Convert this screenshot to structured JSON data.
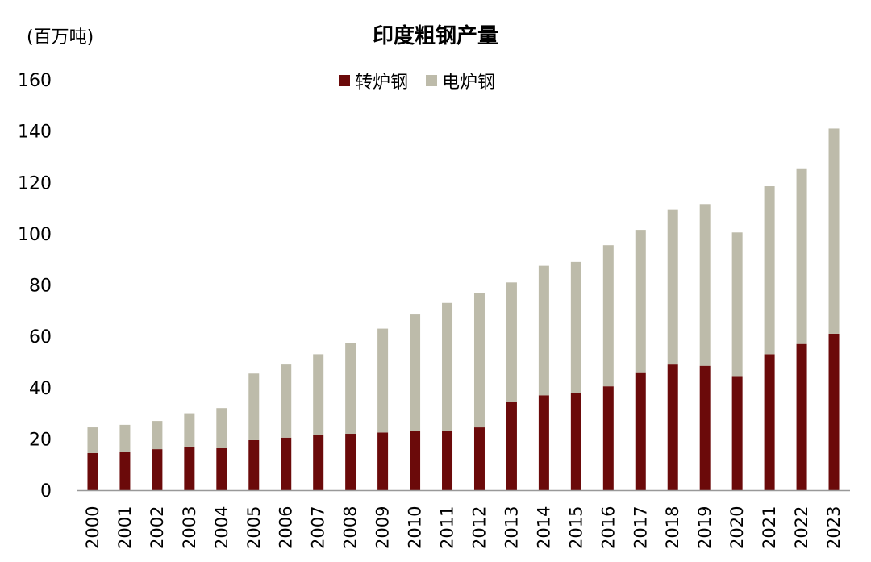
{
  "colors": {
    "bof": "#6B0A0A",
    "eaf": "#BDBBAA",
    "axis": "#999999"
  },
  "chart_data": {
    "type": "bar",
    "stacked": true,
    "title": "印度粗钢产量",
    "unit_label": "(百万吨)",
    "xlabel": "",
    "ylabel": "",
    "ylim": [
      0,
      160
    ],
    "yticks": [
      0,
      20,
      40,
      60,
      80,
      100,
      120,
      140,
      160
    ],
    "grid": false,
    "legend": "top",
    "categories": [
      "2000",
      "2001",
      "2002",
      "2003",
      "2004",
      "2005",
      "2006",
      "2007",
      "2008",
      "2009",
      "2010",
      "2011",
      "2012",
      "2013",
      "2014",
      "2015",
      "2016",
      "2017",
      "2018",
      "2019",
      "2020",
      "2021",
      "2022",
      "2023"
    ],
    "series": [
      {
        "name": "转炉钢",
        "color_key": "bof",
        "values": [
          14.5,
          15.0,
          16.0,
          17.0,
          16.5,
          19.5,
          20.5,
          21.5,
          22.0,
          22.5,
          23.0,
          23.0,
          24.5,
          34.5,
          37.0,
          38.0,
          40.5,
          46.0,
          49.0,
          48.5,
          44.5,
          53.0,
          57.0,
          61.0
        ]
      },
      {
        "name": "电炉钢",
        "color_key": "eaf",
        "values": [
          10.0,
          10.5,
          11.0,
          13.0,
          15.5,
          26.0,
          28.5,
          31.5,
          35.5,
          40.5,
          45.5,
          50.0,
          52.5,
          46.5,
          50.5,
          51.0,
          55.0,
          55.5,
          60.5,
          63.0,
          56.0,
          65.5,
          68.5,
          80.0
        ]
      }
    ]
  }
}
